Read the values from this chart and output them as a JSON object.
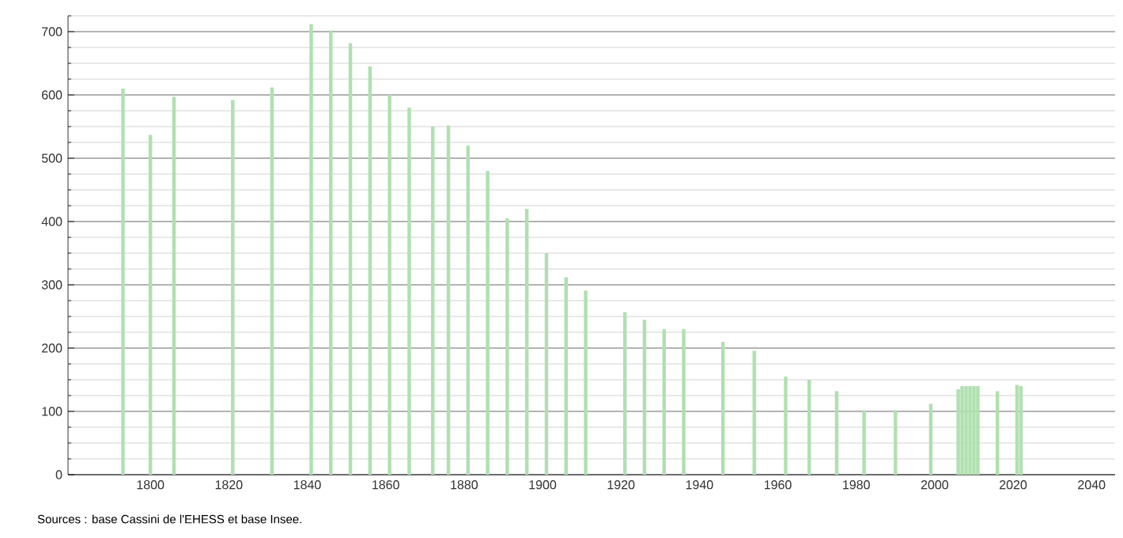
{
  "chart_data": {
    "type": "bar",
    "x": [
      1793,
      1800,
      1806,
      1821,
      1831,
      1841,
      1846,
      1851,
      1856,
      1861,
      1866,
      1872,
      1876,
      1881,
      1886,
      1891,
      1896,
      1901,
      1906,
      1911,
      1921,
      1926,
      1931,
      1936,
      1946,
      1954,
      1962,
      1968,
      1975,
      1982,
      1990,
      1999,
      2006,
      2007,
      2008,
      2009,
      2010,
      2011,
      2016,
      2021,
      2022
    ],
    "values": [
      610,
      537,
      597,
      592,
      612,
      712,
      702,
      682,
      645,
      600,
      580,
      550,
      552,
      520,
      480,
      405,
      420,
      350,
      312,
      291,
      257,
      245,
      230,
      230,
      210,
      196,
      155,
      150,
      132,
      102,
      102,
      112,
      135,
      140,
      140,
      140,
      140,
      140,
      132,
      142,
      140
    ],
    "color": "#b0e0b0",
    "xlim": [
      1779,
      2046
    ],
    "xticks": [
      1800,
      1820,
      1840,
      1860,
      1880,
      1900,
      1920,
      1940,
      1960,
      1980,
      2000,
      2020,
      2040
    ],
    "ylim": [
      0,
      725
    ],
    "yticks": [
      0,
      100,
      200,
      300,
      400,
      500,
      600,
      700
    ],
    "grid": "y",
    "annotations": [
      "Sources : base Cassini de l'EHESS et base Insee."
    ]
  }
}
